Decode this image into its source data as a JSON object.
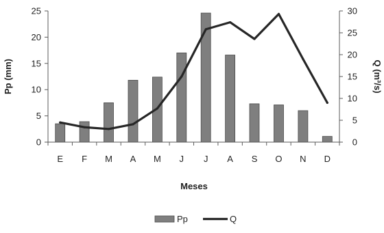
{
  "chart_data": {
    "type": "bar",
    "title": "",
    "xlabel": "Meses",
    "ylabel": "Pp (mm)",
    "y2label": "Q (m³/s)",
    "categories": [
      "E",
      "F",
      "M",
      "A",
      "M",
      "J",
      "J",
      "A",
      "S",
      "O",
      "N",
      "D"
    ],
    "ylim": [
      0,
      25
    ],
    "y2lim": [
      0,
      30
    ],
    "yticks": [
      0,
      5,
      10,
      15,
      20,
      25
    ],
    "y2ticks": [
      0,
      5,
      10,
      15,
      20,
      25,
      30
    ],
    "grid": false,
    "legend_position": "bottom",
    "series": [
      {
        "name": "Pp",
        "type": "bar",
        "axis": "left",
        "color": "#7f7f7f",
        "values": [
          3.5,
          3.9,
          7.5,
          11.8,
          12.4,
          17.0,
          24.6,
          16.6,
          7.3,
          7.1,
          6.0,
          1.1
        ]
      },
      {
        "name": "Q",
        "type": "line",
        "axis": "right",
        "color": "#262626",
        "values": [
          4.5,
          3.4,
          3.0,
          4.1,
          7.7,
          15.0,
          25.8,
          27.4,
          23.6,
          29.3,
          19.0,
          9.0
        ]
      }
    ]
  }
}
